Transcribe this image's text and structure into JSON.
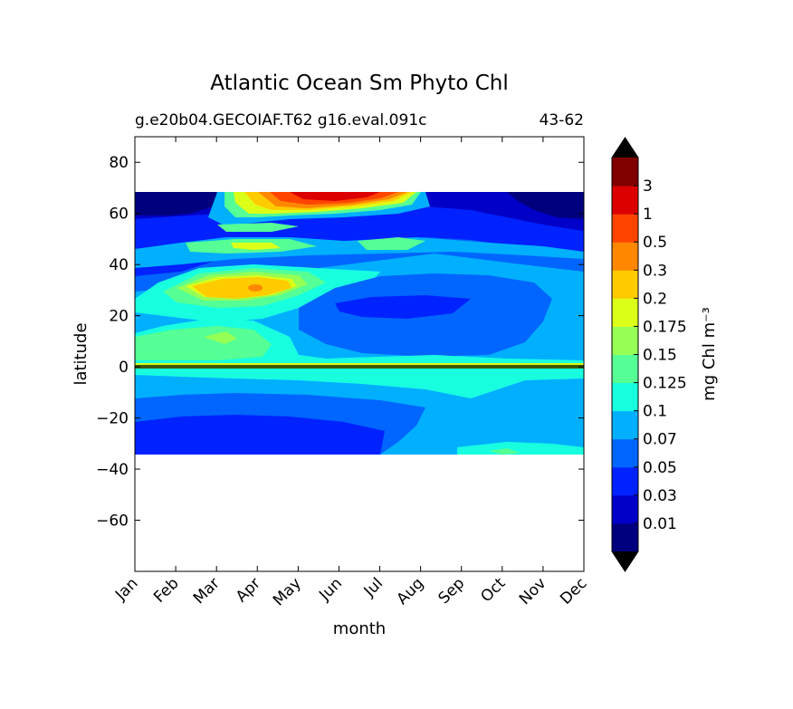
{
  "chart_data": {
    "type": "heatmap",
    "title": "Atlantic Ocean Sm Phyto Chl",
    "subtitle_left": "g.e20b04.GECOIAF.T62 g16.eval.091c",
    "subtitle_right": "43-62",
    "xlabel": "month",
    "ylabel": "latitude",
    "x_categories": [
      "Jan",
      "Feb",
      "Mar",
      "Apr",
      "May",
      "Jun",
      "Jul",
      "Aug",
      "Sep",
      "Oct",
      "Nov",
      "Dec"
    ],
    "ylim": [
      -80,
      90
    ],
    "y_ticks": [
      80,
      60,
      40,
      20,
      0,
      -20,
      -40,
      -60
    ],
    "y_tick_labels": [
      "80",
      "60",
      "40",
      "20",
      "0",
      "−20",
      "−40",
      "−60"
    ],
    "data_lat_range": [
      -34,
      68
    ],
    "colorbar": {
      "label": "mg Chl m⁻³",
      "levels": [
        "0.01",
        "0.03",
        "0.05",
        "0.07",
        "0.1",
        "0.125",
        "0.15",
        "0.175",
        "0.2",
        "0.3",
        "0.5",
        "1",
        "3"
      ],
      "colors": [
        "#00007f",
        "#0000c8",
        "#0022ff",
        "#0066ff",
        "#00b0ff",
        "#18ffe0",
        "#55ff95",
        "#95ff55",
        "#dcff18",
        "#ffcc00",
        "#ff8800",
        "#ff4400",
        "#dd0000",
        "#800000"
      ],
      "extend": "both"
    },
    "regions": [
      {
        "lat": [
          60,
          68
        ],
        "months": [
          "Jan",
          "Feb"
        ],
        "level": "<0.01"
      },
      {
        "lat": [
          60,
          68
        ],
        "months": [
          "Nov",
          "Dec"
        ],
        "level": "<0.01"
      },
      {
        "lat": [
          60,
          68
        ],
        "months": [
          "May",
          "Jun",
          "Jul"
        ],
        "level": "1-3"
      },
      {
        "lat": [
          25,
          38
        ],
        "months": [
          "Mar",
          "Apr",
          "May"
        ],
        "level": "0.2-0.3"
      },
      {
        "lat": [
          15,
          30
        ],
        "months": [
          "Jun",
          "Jul",
          "Aug",
          "Sep",
          "Oct"
        ],
        "level": "0.05-0.07"
      },
      {
        "lat": [
          -33,
          -18
        ],
        "months": [
          "Jan",
          "Feb",
          "Mar",
          "Apr",
          "May",
          "Jun",
          "Jul"
        ],
        "level": "0.03-0.05"
      },
      {
        "lat": [
          0,
          10
        ],
        "months": [
          "Jan",
          "Feb",
          "Mar",
          "Apr",
          "May"
        ],
        "level": "0.125-0.15"
      },
      {
        "lat": [
          -12,
          -1
        ],
        "months": [
          "Jan",
          "Feb",
          "Mar",
          "Apr",
          "May",
          "Jun",
          "Jul",
          "Aug",
          "Sep",
          "Oct",
          "Nov",
          "Dec"
        ],
        "level": "0.07-0.1"
      }
    ]
  }
}
